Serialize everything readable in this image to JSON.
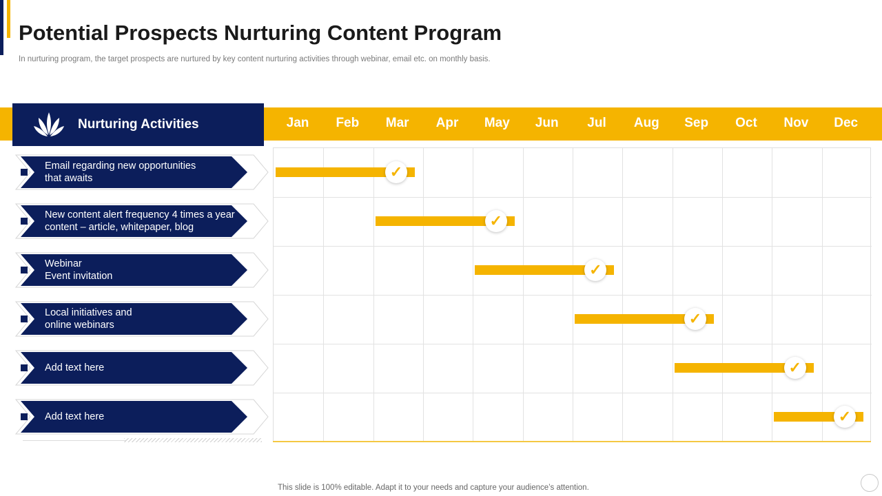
{
  "title": "Potential Prospects Nurturing Content Program",
  "subtitle": "In nurturing program, the target prospects are nurtured by key content nurturing activities through webinar, email etc. on monthly basis.",
  "header": {
    "label": "Nurturing Activities",
    "icon": "leaf-cluster-icon"
  },
  "months": [
    "Jan",
    "Feb",
    "Mar",
    "Apr",
    "May",
    "Jun",
    "Jul",
    "Aug",
    "Sep",
    "Oct",
    "Nov",
    "Dec"
  ],
  "activities": [
    {
      "line1": "Email regarding new opportunities",
      "line2": "that awaits",
      "start_month": "Jan",
      "end_month": "Mar"
    },
    {
      "line1": "New content alert frequency 4 times a year",
      "line2": "content – article, whitepaper, blog",
      "start_month": "Mar",
      "end_month": "May"
    },
    {
      "line1": "Webinar",
      "line2": "Event invitation",
      "start_month": "May",
      "end_month": "Jul"
    },
    {
      "line1": "Local initiatives and",
      "line2": "online webinars",
      "start_month": "Jul",
      "end_month": "Sep"
    },
    {
      "line1": "Add text here",
      "line2": "",
      "start_month": "Sep",
      "end_month": "Nov"
    },
    {
      "line1": "Add text here",
      "line2": "",
      "start_month": "Nov",
      "end_month": "Dec"
    }
  ],
  "check_mark": "✓",
  "footer": "This slide is 100% editable. Adapt it to your needs and capture your audience’s attention.",
  "colors": {
    "navy": "#0c1e5b",
    "gold": "#f5b400",
    "text_dark": "#1a1a1a",
    "text_muted": "#7a7a7a"
  }
}
